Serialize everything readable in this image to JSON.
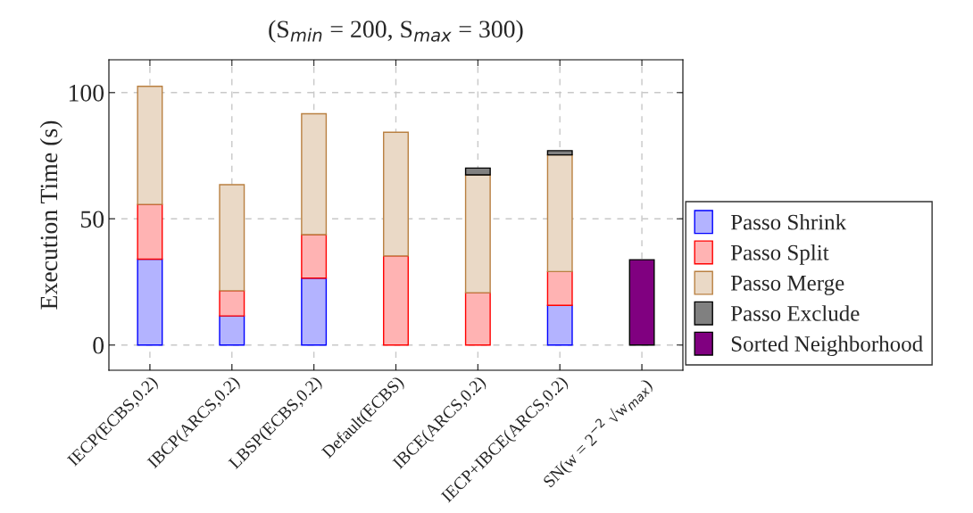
{
  "chart_data": {
    "type": "bar",
    "title": "(S$_{min}$ = 200, S$_{max}$ = 300)",
    "ylabel": "Execution Time (s)",
    "categories": [
      "IECP(ECBS,0.2)",
      "IBCP(ARCS,0.2)",
      "LBSP(ECBS,0.2)",
      "Default(ECBS)",
      "IBCE(ARCS,0.2)",
      "IECP+IBCE(ARCS,0.2)",
      "SN(w = 2$^{−2}$ √w$_{max}$)"
    ],
    "stacked": true,
    "series": [
      {
        "name": "Passo Shrink",
        "color": "#b3b3ff",
        "values": [
          34.0,
          11.5,
          26.5,
          null,
          null,
          15.7,
          null
        ]
      },
      {
        "name": "Passo Split",
        "color": "#ffb3b3",
        "values": [
          21.7,
          10.0,
          17.2,
          35.3,
          20.7,
          13.4,
          null
        ]
      },
      {
        "name": "Passo Merge",
        "color": "#ead9c6",
        "values": [
          46.8,
          42.0,
          47.9,
          49.0,
          46.7,
          46.2,
          null
        ]
      },
      {
        "name": "Passo Exclude",
        "color": "#808080",
        "values": [
          null,
          null,
          null,
          null,
          2.7,
          1.7,
          null
        ]
      },
      {
        "name": "Sorted Neighborhood",
        "color": "#800080",
        "values": [
          null,
          null,
          null,
          null,
          null,
          null,
          33.8
        ]
      }
    ],
    "ylim": [
      -10,
      113
    ],
    "yticks": [
      0,
      50,
      100
    ],
    "grid": true,
    "legend": "right"
  }
}
